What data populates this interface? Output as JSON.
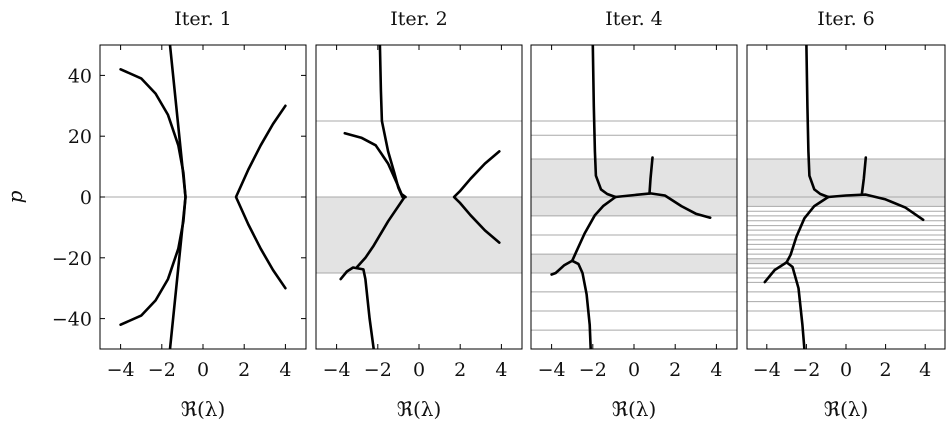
{
  "chart_data": [
    {
      "type": "line",
      "title": "Iter. 1",
      "xlabel": "ℜ(λ)",
      "ylabel": "p",
      "xlim": [
        -5,
        5
      ],
      "ylim": [
        -50,
        50
      ],
      "xticks": [
        -4,
        -2,
        0,
        2,
        4
      ],
      "yticks": [
        40,
        20,
        0,
        -20,
        -40
      ],
      "xtick_labels": [
        "−4",
        "−2",
        "0",
        "2",
        "4"
      ],
      "ytick_labels": [
        "40",
        "20",
        "0",
        "−20",
        "−40"
      ],
      "shaded_bands": [],
      "grid_lines_y": [
        0
      ],
      "series": [
        {
          "points": [
            [
              -1.6,
              50
            ],
            [
              -1.45,
              40
            ],
            [
              -1.3,
              30
            ],
            [
              -1.15,
              20
            ],
            [
              -1.0,
              10
            ],
            [
              -0.85,
              0
            ],
            [
              -1.0,
              -10
            ],
            [
              -1.15,
              -20
            ],
            [
              -1.3,
              -30
            ],
            [
              -1.45,
              -40
            ],
            [
              -1.6,
              -50
            ]
          ]
        },
        {
          "points": [
            [
              -4.0,
              42
            ],
            [
              -3.0,
              39
            ],
            [
              -2.3,
              34
            ],
            [
              -1.7,
              27
            ],
            [
              -1.2,
              17
            ],
            [
              -0.95,
              8
            ],
            [
              -0.85,
              0
            ],
            [
              -0.95,
              -8
            ],
            [
              -1.2,
              -17
            ],
            [
              -1.7,
              -27
            ],
            [
              -2.3,
              -34
            ],
            [
              -3.0,
              -39
            ],
            [
              -4.0,
              -42
            ]
          ]
        },
        {
          "points": [
            [
              4.0,
              30
            ],
            [
              3.4,
              24
            ],
            [
              2.8,
              17
            ],
            [
              2.2,
              9
            ],
            [
              1.8,
              3
            ],
            [
              1.6,
              0
            ],
            [
              1.8,
              -3
            ],
            [
              2.2,
              -9
            ],
            [
              2.8,
              -17
            ],
            [
              3.4,
              -24
            ],
            [
              4.0,
              -30
            ]
          ]
        }
      ]
    },
    {
      "type": "line",
      "title": "Iter. 2",
      "xlabel": "ℜ(λ)",
      "ylabel": "",
      "xlim": [
        -5,
        5
      ],
      "ylim": [
        -50,
        50
      ],
      "xticks": [
        -4,
        -2,
        0,
        2,
        4
      ],
      "yticks": [],
      "xtick_labels": [
        "−4",
        "−2",
        "0",
        "2",
        "4"
      ],
      "ytick_labels": [],
      "shaded_bands": [
        [
          -25,
          0
        ]
      ],
      "grid_lines_y": [
        25,
        0,
        -25
      ],
      "series": [
        {
          "points": [
            [
              -1.9,
              50
            ],
            [
              -1.85,
              35
            ],
            [
              -1.8,
              25
            ],
            [
              -1.5,
              15
            ],
            [
              -1.2,
              8
            ],
            [
              -1.0,
              3
            ],
            [
              -0.8,
              0
            ]
          ]
        },
        {
          "points": [
            [
              -3.6,
              21
            ],
            [
              -2.8,
              19.5
            ],
            [
              -2.1,
              17
            ],
            [
              -1.5,
              11
            ],
            [
              -1.1,
              5
            ],
            [
              -0.85,
              1
            ],
            [
              -0.65,
              0
            ]
          ]
        },
        {
          "points": [
            [
              -0.7,
              0
            ],
            [
              -1.5,
              -8
            ],
            [
              -2.2,
              -16
            ],
            [
              -2.6,
              -20
            ],
            [
              -3.0,
              -23
            ]
          ]
        },
        {
          "points": [
            [
              -3.8,
              -27
            ],
            [
              -3.5,
              -24.5
            ],
            [
              -3.2,
              -23.2
            ],
            [
              -2.7,
              -23.8
            ],
            [
              -2.6,
              -27
            ],
            [
              -2.4,
              -40
            ],
            [
              -2.2,
              -50
            ]
          ]
        },
        {
          "points": [
            [
              3.9,
              15
            ],
            [
              3.2,
              11
            ],
            [
              2.5,
              6
            ],
            [
              2.0,
              2
            ],
            [
              1.7,
              0
            ],
            [
              2.0,
              -2
            ],
            [
              2.5,
              -6
            ],
            [
              3.2,
              -11
            ],
            [
              3.9,
              -15
            ]
          ]
        }
      ]
    },
    {
      "type": "line",
      "title": "Iter. 4",
      "xlabel": "ℜ(λ)",
      "ylabel": "",
      "xlim": [
        -5,
        5
      ],
      "ylim": [
        -50,
        50
      ],
      "xticks": [
        -4,
        -2,
        0,
        2,
        4
      ],
      "yticks": [],
      "xtick_labels": [
        "−4",
        "−2",
        "0",
        "2",
        "4"
      ],
      "ytick_labels": [],
      "shaded_bands": [
        [
          -6.2,
          12.5
        ],
        [
          -25,
          -18.8
        ]
      ],
      "grid_lines_y": [
        25,
        20.3,
        12.5,
        0,
        -6.2,
        -12.5,
        -18.8,
        -25,
        -31.2,
        -37.5,
        -43.8
      ],
      "series": [
        {
          "points": [
            [
              -2.0,
              50
            ],
            [
              -1.95,
              30
            ],
            [
              -1.9,
              15
            ],
            [
              -1.85,
              7
            ],
            [
              -1.6,
              2.5
            ],
            [
              -1.3,
              1
            ],
            [
              -0.9,
              0
            ]
          ]
        },
        {
          "points": [
            [
              -0.9,
              0
            ],
            [
              -0.2,
              0.5
            ],
            [
              0.8,
              1.2
            ],
            [
              1.5,
              0.5
            ],
            [
              2.3,
              -3
            ],
            [
              3.0,
              -5.5
            ],
            [
              3.7,
              -6.8
            ]
          ]
        },
        {
          "points": [
            [
              0.75,
              1.2
            ],
            [
              0.8,
              6
            ],
            [
              0.9,
              13
            ]
          ]
        },
        {
          "points": [
            [
              -0.9,
              0
            ],
            [
              -1.5,
              -3
            ],
            [
              -1.9,
              -6
            ],
            [
              -2.4,
              -12
            ],
            [
              -2.8,
              -18
            ],
            [
              -3.0,
              -21
            ]
          ]
        },
        {
          "points": [
            [
              -3.0,
              -21
            ],
            [
              -3.4,
              -22.5
            ],
            [
              -3.8,
              -25
            ],
            [
              -4.0,
              -25.5
            ]
          ]
        },
        {
          "points": [
            [
              -3.0,
              -21
            ],
            [
              -2.7,
              -22
            ],
            [
              -2.5,
              -25
            ],
            [
              -2.3,
              -32
            ],
            [
              -2.15,
              -42
            ],
            [
              -2.1,
              -50
            ]
          ]
        }
      ]
    },
    {
      "type": "line",
      "title": "Iter. 6",
      "xlabel": "ℜ(λ)",
      "ylabel": "",
      "xlim": [
        -5,
        5
      ],
      "ylim": [
        -50,
        50
      ],
      "xticks": [
        -4,
        -2,
        0,
        2,
        4
      ],
      "yticks": [],
      "xtick_labels": [
        "−4",
        "−2",
        "0",
        "2",
        "4"
      ],
      "ytick_labels": [],
      "shaded_bands": [
        [
          -3.1,
          12.5
        ],
        [
          -21.9,
          -20.3
        ]
      ],
      "grid_lines_y": [
        25,
        12.5,
        0,
        -3.1,
        -4.7,
        -6.2,
        -7.8,
        -9.4,
        -10.9,
        -12.5,
        -14.1,
        -15.6,
        -17.2,
        -18.8,
        -20.3,
        -21.9,
        -23.4,
        -25,
        -26.6,
        -28.1,
        -31.2,
        -34.4,
        -37.5,
        -43.8
      ],
      "series": [
        {
          "points": [
            [
              -2.0,
              50
            ],
            [
              -1.95,
              30
            ],
            [
              -1.9,
              15
            ],
            [
              -1.85,
              7
            ],
            [
              -1.6,
              2.5
            ],
            [
              -1.3,
              1
            ],
            [
              -0.9,
              0
            ]
          ]
        },
        {
          "points": [
            [
              -0.9,
              0
            ],
            [
              0.0,
              0.5
            ],
            [
              1.0,
              0.8
            ],
            [
              2.0,
              -0.8
            ],
            [
              3.0,
              -3.5
            ],
            [
              3.9,
              -7.5
            ]
          ]
        },
        {
          "points": [
            [
              0.8,
              0.8
            ],
            [
              0.9,
              6
            ],
            [
              1.0,
              13
            ]
          ]
        },
        {
          "points": [
            [
              -0.9,
              0
            ],
            [
              -1.6,
              -3
            ],
            [
              -2.1,
              -7
            ],
            [
              -2.5,
              -13
            ],
            [
              -2.8,
              -19
            ],
            [
              -3.0,
              -21.5
            ]
          ]
        },
        {
          "points": [
            [
              -3.0,
              -21.5
            ],
            [
              -3.6,
              -24
            ],
            [
              -4.1,
              -28
            ]
          ]
        },
        {
          "points": [
            [
              -3.0,
              -21.5
            ],
            [
              -2.7,
              -23
            ],
            [
              -2.4,
              -30
            ],
            [
              -2.2,
              -42
            ],
            [
              -2.1,
              -50
            ]
          ]
        }
      ]
    }
  ]
}
